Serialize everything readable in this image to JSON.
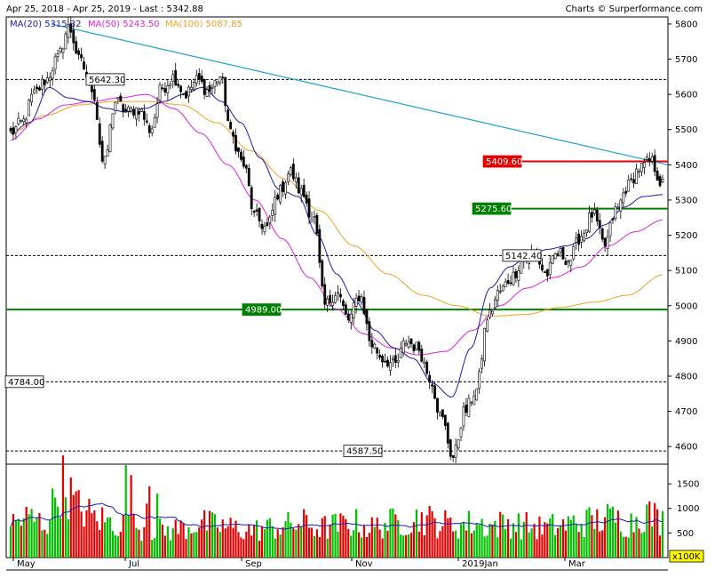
{
  "header": {
    "range": "Apr 25, 2018 - Apr 25, 2019 - Last : 5342.88",
    "credit": "Charts © Surperformance.com"
  },
  "legend": [
    {
      "label": "MA(20)",
      "value": "5315.32",
      "color": "#1a1ab0"
    },
    {
      "label": "MA(50)",
      "value": "5243.50",
      "color": "#e020e0"
    },
    {
      "label": "MA(100)",
      "value": "5087.85",
      "color": "#f0a020"
    }
  ],
  "chart_data": {
    "type": "candlestick",
    "last": 5342.88,
    "price_axis": {
      "min": 4550,
      "max": 5820,
      "ticks": [
        4600,
        4700,
        4800,
        4900,
        5000,
        5100,
        5200,
        5300,
        5400,
        5500,
        5600,
        5700,
        5800
      ]
    },
    "volume_axis": {
      "max": 1900,
      "ticks": [
        500,
        1000,
        1500
      ],
      "unit": "x100K"
    },
    "x_labels": [
      "May",
      "Jul",
      "Sep",
      "Nov",
      "2019Jan",
      "Mar"
    ],
    "levels": [
      {
        "label": "5642.30",
        "value": 5642.3,
        "style": "dashed",
        "color": "#000000"
      },
      {
        "label": "5409.60",
        "value": 5409.6,
        "style": "solid",
        "color": "#e00000"
      },
      {
        "label": "5275.60",
        "value": 5275.6,
        "style": "solid",
        "color": "#008000"
      },
      {
        "label": "5142.40",
        "value": 5142.4,
        "style": "dashed",
        "color": "#000000"
      },
      {
        "label": "4989.00",
        "value": 4989.0,
        "style": "solid",
        "color": "#008000"
      },
      {
        "label": "4784.00",
        "value": 4784.0,
        "style": "dashed",
        "color": "#000000"
      },
      {
        "label": "4587.50",
        "value": 4587.5,
        "style": "dashed",
        "color": "#000000"
      }
    ],
    "trendline": {
      "from": 5800,
      "to": 5400,
      "color": "#20a0d0"
    },
    "price_anchors": [
      5490,
      5520,
      5600,
      5640,
      5700,
      5790,
      5690,
      5620,
      5400,
      5580,
      5550,
      5560,
      5500,
      5620,
      5650,
      5600,
      5640,
      5610,
      5650,
      5480,
      5400,
      5250,
      5220,
      5320,
      5380,
      5320,
      5250,
      5000,
      5040,
      4960,
      5030,
      4890,
      4850,
      4830,
      4900,
      4880,
      4800,
      4680,
      4570,
      4700,
      4760,
      4970,
      5040,
      5080,
      5130,
      5140,
      5090,
      5150,
      5130,
      5200,
      5260,
      5170,
      5270,
      5340,
      5390,
      5409.6,
      5342.88
    ],
    "ma20_anchors": [
      5490,
      5520,
      5620,
      5590,
      5580,
      5560,
      5550,
      5560,
      5580,
      5600,
      5620,
      5580,
      5520,
      5420,
      5330,
      5310,
      5200,
      5090,
      5010,
      4930,
      4880,
      4850,
      4780,
      4740,
      4880,
      5050,
      5110,
      5140,
      5160,
      5170,
      5190,
      5230,
      5280,
      5310,
      5315.32
    ],
    "ma50_anchors": [
      5470,
      5530,
      5570,
      5580,
      5590,
      5600,
      5560,
      5490,
      5400,
      5300,
      5190,
      5080,
      4990,
      4920,
      4880,
      4860,
      4870,
      4930,
      5000,
      5050,
      5080,
      5110,
      5170,
      5210,
      5243.5
    ],
    "ma100_anchors": [
      5490,
      5540,
      5570,
      5580,
      5580,
      5570,
      5520,
      5440,
      5360,
      5270,
      5170,
      5090,
      5030,
      5000,
      4970,
      4975,
      4995,
      5010,
      5030,
      5087.85
    ],
    "volume_anchors": [
      700,
      800,
      700,
      1500,
      1000,
      800,
      700,
      650,
      600,
      550,
      600,
      700,
      650,
      600,
      550,
      600,
      650,
      700,
      600,
      650,
      700,
      600,
      700,
      750,
      800,
      700,
      650,
      700,
      650,
      700,
      650,
      600,
      650,
      700,
      750,
      800,
      700,
      900,
      750
    ]
  }
}
